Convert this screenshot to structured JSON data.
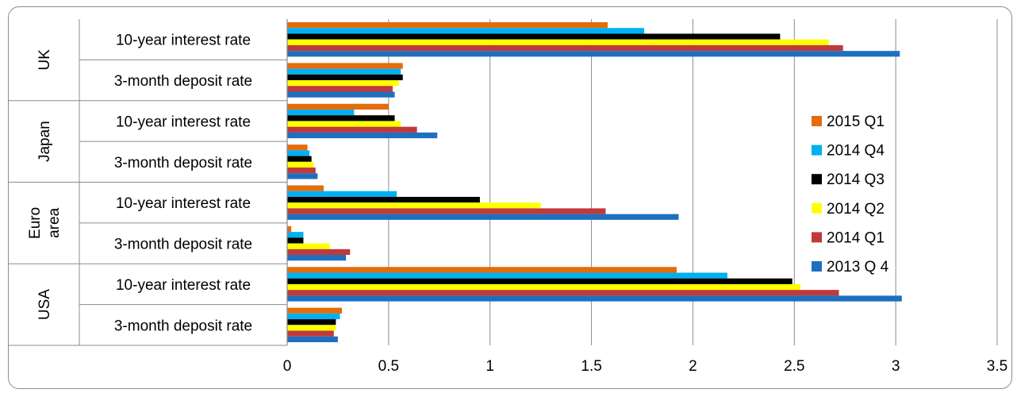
{
  "chart_data": {
    "type": "bar",
    "orientation": "horizontal",
    "title": "",
    "xlabel": "",
    "ylabel": "",
    "xlim": [
      0,
      3.5
    ],
    "x_ticks": [
      "0",
      "0.5",
      "1",
      "1.5",
      "2",
      "2.5",
      "3",
      "3.5"
    ],
    "grid": true,
    "legend_position": "right",
    "groups": [
      {
        "label": "UK",
        "label_lines": [
          "UK"
        ]
      },
      {
        "label": "Japan",
        "label_lines": [
          "Japan"
        ]
      },
      {
        "label": "Euro area",
        "label_lines": [
          "Euro",
          "area"
        ]
      },
      {
        "label": "USA",
        "label_lines": [
          "USA"
        ]
      }
    ],
    "categories": [
      {
        "group": "UK",
        "label": "10-year interest rate"
      },
      {
        "group": "UK",
        "label": "3-month deposit rate"
      },
      {
        "group": "Japan",
        "label": "10-year interest rate"
      },
      {
        "group": "Japan",
        "label": "3-month deposit rate"
      },
      {
        "group": "Euro area",
        "label": "10-year interest rate"
      },
      {
        "group": "Euro area",
        "label": "3-month deposit rate"
      },
      {
        "group": "USA",
        "label": "10-year interest rate"
      },
      {
        "group": "USA",
        "label": "3-month deposit rate"
      }
    ],
    "series": [
      {
        "name": "2015 Q1",
        "color": "#E46C0A",
        "values": [
          1.58,
          0.57,
          0.5,
          0.1,
          0.18,
          0.02,
          1.92,
          0.27
        ]
      },
      {
        "name": "2014 Q4",
        "color": "#00B0F0",
        "values": [
          1.76,
          0.56,
          0.33,
          0.11,
          0.54,
          0.08,
          2.17,
          0.26
        ]
      },
      {
        "name": "2014 Q3",
        "color": "#000000",
        "values": [
          2.43,
          0.57,
          0.53,
          0.12,
          0.95,
          0.08,
          2.49,
          0.24
        ]
      },
      {
        "name": "2014 Q2",
        "color": "#FFFF00",
        "values": [
          2.67,
          0.55,
          0.56,
          0.13,
          1.25,
          0.21,
          2.53,
          0.24
        ]
      },
      {
        "name": "2014 Q1",
        "color": "#C0393B",
        "values": [
          2.74,
          0.52,
          0.64,
          0.14,
          1.57,
          0.31,
          2.72,
          0.23
        ]
      },
      {
        "name": "2013 Q 4",
        "color": "#1F6FBF",
        "values": [
          3.02,
          0.53,
          0.74,
          0.15,
          1.93,
          0.29,
          3.03,
          0.25
        ]
      }
    ]
  }
}
